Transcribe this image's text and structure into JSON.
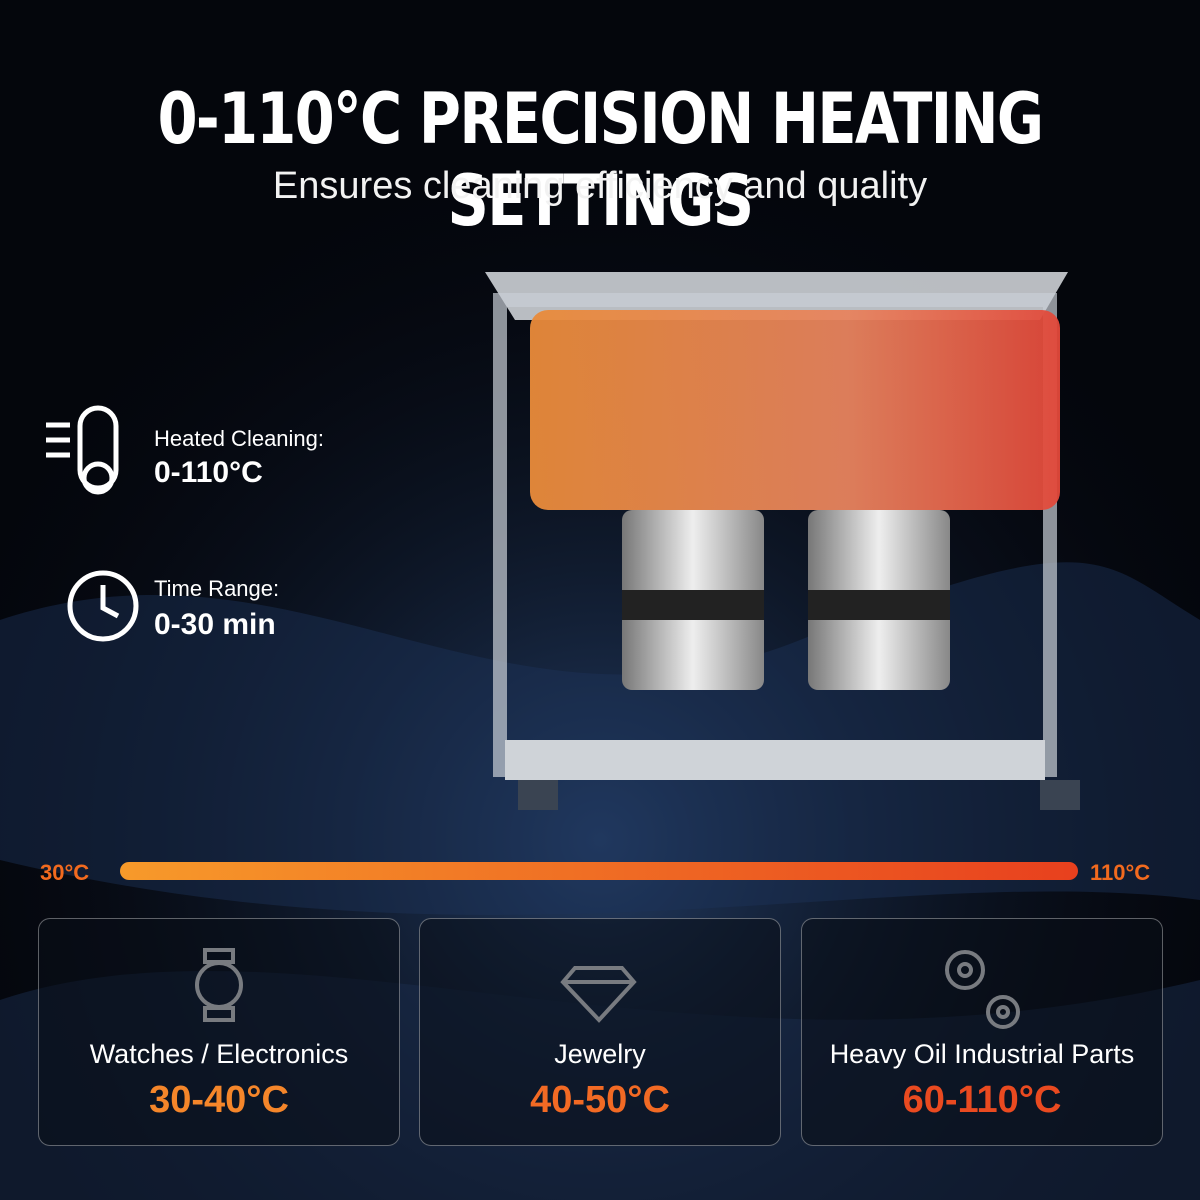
{
  "header": {
    "title": "0-110°C PRECISION HEATING SETTINGS",
    "subtitle": "Ensures cleaning efficiency and quality"
  },
  "features": [
    {
      "label": "Heated Cleaning:",
      "value": "0-110°C"
    },
    {
      "label": "Time Range:",
      "value": "0-30 min"
    }
  ],
  "scale": {
    "start": "30°C",
    "end": "110°C"
  },
  "cards": [
    {
      "label": "Watches / Electronics",
      "range": "30-40°C"
    },
    {
      "label": "Jewelry",
      "range": "40-50°C"
    },
    {
      "label": "Heavy Oil Industrial Parts",
      "range": "60-110°C"
    }
  ]
}
